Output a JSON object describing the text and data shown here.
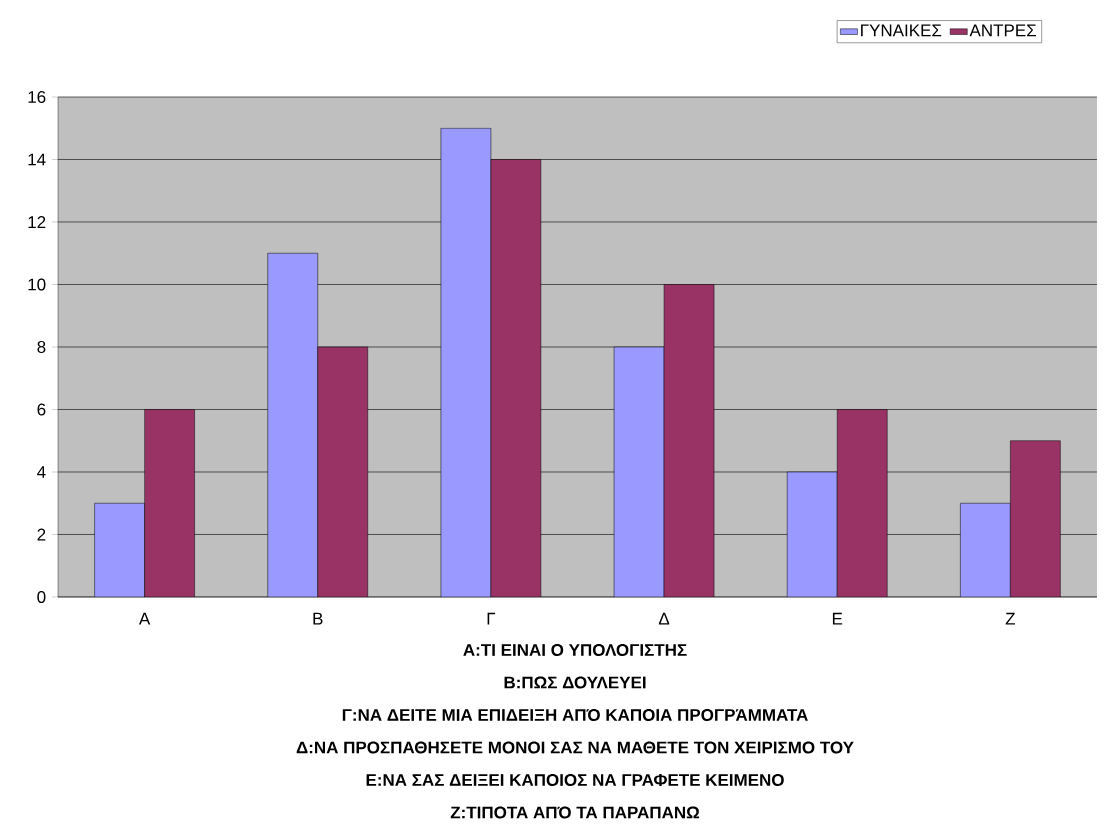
{
  "chart_data": {
    "type": "bar",
    "categories": [
      "Α",
      "Β",
      "Γ",
      "Δ",
      "Ε",
      "Ζ"
    ],
    "series": [
      {
        "name": "ΓΥΝΑΙΚΕΣ",
        "color": "#9999ff",
        "values": [
          3,
          11,
          15,
          8,
          4,
          3
        ]
      },
      {
        "name": "ΑΝΤΡΕΣ",
        "color": "#993366",
        "values": [
          6,
          8,
          14,
          10,
          6,
          5
        ]
      }
    ],
    "ylim": [
      0,
      16
    ],
    "yticks": [
      0,
      2,
      4,
      6,
      8,
      10,
      12,
      14,
      16
    ],
    "grid": "y",
    "legend": "top right",
    "annotations": [
      "Α:ΤΙ ΕΙΝΑΙ Ο ΥΠΟΛΟΓΙΣΤΗΣ",
      "Β:ΠΩΣ ΔΟΥΛΕΥΕΙ",
      "Γ:ΝΑ ΔΕΙΤΕ ΜΙΑ ΕΠΙΔΕΙΞΗ ΑΠΌ ΚΑΠΟΙΑ ΠΡΟΓΡΆΜΜΑΤΑ",
      "Δ:ΝΑ ΠΡΟΣΠΑΘΗΣΕΤΕ ΜΟΝΟΙ ΣΑΣ ΝΑ ΜΑΘΕΤΕ ΤΟΝ ΧΕΙΡΙΣΜΟ ΤΟΥ",
      "Ε:ΝΑ ΣΑΣ ΔΕΙΞΕΙ ΚΑΠΟΙΟΣ ΝΑ ΓΡΑΦΕΤΕ ΚΕΙΜΕΝΟ",
      "Ζ:ΤΙΠΟΤΑ ΑΠΌ ΤΑ ΠΑΡΑΠΑΝΩ"
    ]
  }
}
